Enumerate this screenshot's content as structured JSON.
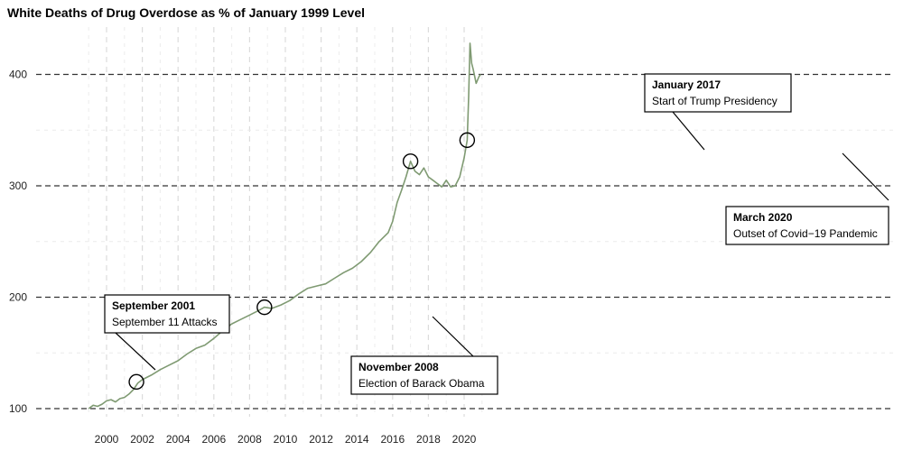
{
  "chart_data": {
    "type": "line",
    "title": "White Deaths of Drug Overdose as % of January 1999 Level",
    "xlabel": "",
    "ylabel": "",
    "xlim": [
      1999,
      2021.0
    ],
    "ylim": [
      100,
      430
    ],
    "x_ticks": [
      2000,
      2002,
      2004,
      2006,
      2008,
      2010,
      2012,
      2014,
      2016,
      2018,
      2020
    ],
    "y_ticks": [
      100,
      200,
      300,
      400
    ],
    "grid": true,
    "reference_lines": [
      100,
      200,
      300,
      400
    ],
    "series": [
      {
        "color": "#7f9a72",
        "points": [
          [
            1999.0,
            100
          ],
          [
            1999.25,
            103
          ],
          [
            1999.5,
            102
          ],
          [
            1999.75,
            104
          ],
          [
            2000.0,
            107
          ],
          [
            2000.25,
            108
          ],
          [
            2000.5,
            106
          ],
          [
            2000.75,
            109
          ],
          [
            2001.0,
            110
          ],
          [
            2001.25,
            113
          ],
          [
            2001.5,
            117
          ],
          [
            2001.75,
            123
          ],
          [
            2002.0,
            126
          ],
          [
            2002.5,
            130
          ],
          [
            2003.0,
            135
          ],
          [
            2003.5,
            139
          ],
          [
            2004.0,
            143
          ],
          [
            2004.5,
            149
          ],
          [
            2005.0,
            154
          ],
          [
            2005.5,
            157
          ],
          [
            2006.0,
            163
          ],
          [
            2006.5,
            170
          ],
          [
            2007.0,
            176
          ],
          [
            2007.5,
            180
          ],
          [
            2008.0,
            184
          ],
          [
            2008.5,
            188
          ],
          [
            2008.83,
            191
          ],
          [
            2009.25,
            190
          ],
          [
            2009.75,
            193
          ],
          [
            2010.25,
            197
          ],
          [
            2010.75,
            203
          ],
          [
            2011.25,
            208
          ],
          [
            2011.75,
            210
          ],
          [
            2012.25,
            212
          ],
          [
            2012.75,
            217
          ],
          [
            2013.25,
            222
          ],
          [
            2013.75,
            226
          ],
          [
            2014.25,
            232
          ],
          [
            2014.75,
            240
          ],
          [
            2015.25,
            250
          ],
          [
            2015.75,
            258
          ],
          [
            2016.0,
            268
          ],
          [
            2016.25,
            285
          ],
          [
            2016.5,
            296
          ],
          [
            2016.75,
            308
          ],
          [
            2017.0,
            322
          ],
          [
            2017.25,
            313
          ],
          [
            2017.5,
            310
          ],
          [
            2017.75,
            316
          ],
          [
            2018.0,
            308
          ],
          [
            2018.25,
            305
          ],
          [
            2018.5,
            302
          ],
          [
            2018.75,
            299
          ],
          [
            2019.0,
            305
          ],
          [
            2019.25,
            299
          ],
          [
            2019.5,
            300
          ],
          [
            2019.75,
            308
          ],
          [
            2020.0,
            325
          ],
          [
            2020.17,
            341
          ],
          [
            2020.25,
            380
          ],
          [
            2020.33,
            428
          ],
          [
            2020.42,
            410
          ],
          [
            2020.5,
            405
          ],
          [
            2020.67,
            392
          ],
          [
            2020.83,
            398
          ],
          [
            2020.92,
            400
          ]
        ]
      }
    ],
    "annotations": [
      {
        "x": 2001.67,
        "y": 124,
        "title": "September 2001",
        "text": "September 11 Attacks"
      },
      {
        "x": 2008.83,
        "y": 191,
        "title": "November 2008",
        "text": "Election of Barack Obama"
      },
      {
        "x": 2017.0,
        "y": 322,
        "title": "January 2017",
        "text": "Start of Trump Presidency"
      },
      {
        "x": 2020.17,
        "y": 341,
        "title": "March 2020",
        "text": "Outset of Covid−19 Pandemic"
      }
    ]
  }
}
